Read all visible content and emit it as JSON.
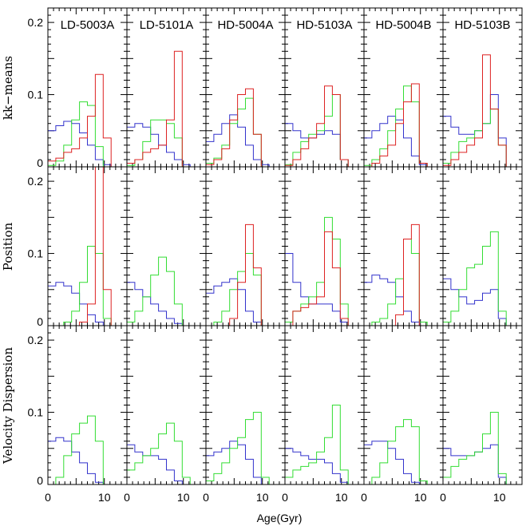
{
  "chart_data": {
    "type": "histogram-grid",
    "xlabel": "Age(Gyr)",
    "xlim": [
      0,
      14
    ],
    "ylim": [
      0,
      0.22
    ],
    "x_ticks": [
      0,
      10
    ],
    "y_ticks": [
      0,
      0.1,
      0.2
    ],
    "y_tick_labels": [
      "0",
      "0.1",
      "0.2"
    ],
    "x_tick_labels": [
      "0",
      "10"
    ],
    "columns": [
      "LD-5003A",
      "LD-5101A",
      "HD-5004A",
      "HD-5103A",
      "HD-5004B",
      "HD-5103B"
    ],
    "rows": [
      "kk−means",
      "Position",
      "Velocity Dispersion"
    ],
    "colors": {
      "blue": "#3333cc",
      "green": "#33dd33",
      "red": "#dd2222"
    },
    "bin_edges": [
      0,
      1.4,
      2.8,
      4.2,
      5.6,
      7.0,
      8.4,
      9.8,
      11.2,
      12.6,
      14
    ],
    "panels": [
      {
        "row": 0,
        "col": 0,
        "series": [
          {
            "color": "blue",
            "values": [
              0.05,
              0.057,
              0.063,
              0.06,
              0.047,
              0.03,
              0.01,
              0.003,
              0.0,
              0.0
            ]
          },
          {
            "color": "green",
            "values": [
              0.002,
              0.008,
              0.03,
              0.065,
              0.09,
              0.085,
              0.028,
              0.0,
              0.0,
              0.0
            ]
          },
          {
            "color": "red",
            "values": [
              0.008,
              0.012,
              0.02,
              0.025,
              0.04,
              0.07,
              0.128,
              0.04,
              0.0,
              0.0
            ]
          }
        ]
      },
      {
        "row": 0,
        "col": 1,
        "series": [
          {
            "color": "blue",
            "values": [
              0.055,
              0.06,
              0.055,
              0.045,
              0.03,
              0.02,
              0.01,
              0.003,
              0.0,
              0.0
            ]
          },
          {
            "color": "green",
            "values": [
              0.002,
              0.01,
              0.035,
              0.065,
              0.065,
              0.06,
              0.04,
              0.0,
              0.0,
              0.0
            ]
          },
          {
            "color": "red",
            "values": [
              0.005,
              0.01,
              0.02,
              0.025,
              0.03,
              0.065,
              0.16,
              0.0,
              0.0,
              0.0
            ]
          }
        ]
      },
      {
        "row": 0,
        "col": 2,
        "series": [
          {
            "color": "blue",
            "values": [
              0.035,
              0.045,
              0.06,
              0.072,
              0.055,
              0.03,
              0.01,
              0.003,
              0.0,
              0.0
            ]
          },
          {
            "color": "green",
            "values": [
              0.005,
              0.012,
              0.03,
              0.06,
              0.08,
              0.095,
              0.045,
              0.0,
              0.0,
              0.0
            ]
          },
          {
            "color": "red",
            "values": [
              0.003,
              0.01,
              0.025,
              0.065,
              0.1,
              0.108,
              0.045,
              0.0,
              0.0,
              0.0
            ]
          }
        ]
      },
      {
        "row": 0,
        "col": 3,
        "series": [
          {
            "color": "blue",
            "values": [
              0.06,
              0.05,
              0.04,
              0.04,
              0.045,
              0.05,
              0.045,
              0.01,
              0.0,
              0.0
            ]
          },
          {
            "color": "green",
            "values": [
              0.003,
              0.02,
              0.035,
              0.045,
              0.05,
              0.07,
              0.1,
              0.01,
              0.0,
              0.0
            ]
          },
          {
            "color": "red",
            "values": [
              0.002,
              0.01,
              0.025,
              0.04,
              0.06,
              0.112,
              0.1,
              0.01,
              0.0,
              0.0
            ]
          }
        ]
      },
      {
        "row": 0,
        "col": 4,
        "series": [
          {
            "color": "blue",
            "values": [
              0.04,
              0.05,
              0.06,
              0.07,
              0.065,
              0.04,
              0.015,
              0.003,
              0.0,
              0.0
            ]
          },
          {
            "color": "green",
            "values": [
              0.002,
              0.01,
              0.025,
              0.05,
              0.08,
              0.112,
              0.09,
              0.005,
              0.0,
              0.0
            ]
          },
          {
            "color": "red",
            "values": [
              0.0,
              0.005,
              0.015,
              0.03,
              0.06,
              0.09,
              0.115,
              0.005,
              0.0,
              0.0
            ]
          }
        ]
      },
      {
        "row": 0,
        "col": 5,
        "series": [
          {
            "color": "blue",
            "values": [
              0.07,
              0.055,
              0.045,
              0.045,
              0.05,
              0.06,
              0.1,
              0.04,
              0.0,
              0.0
            ]
          },
          {
            "color": "green",
            "values": [
              0.005,
              0.02,
              0.035,
              0.04,
              0.05,
              0.06,
              0.08,
              0.03,
              0.0,
              0.0
            ]
          },
          {
            "color": "red",
            "values": [
              0.002,
              0.01,
              0.02,
              0.03,
              0.04,
              0.155,
              0.08,
              0.03,
              0.0,
              0.0
            ]
          }
        ]
      },
      {
        "row": 1,
        "col": 0,
        "series": [
          {
            "color": "blue",
            "values": [
              0.055,
              0.06,
              0.055,
              0.045,
              0.03,
              0.015,
              0.005,
              0.0,
              0.0,
              0.0
            ]
          },
          {
            "color": "green",
            "values": [
              0.0,
              0.0,
              0.005,
              0.02,
              0.06,
              0.11,
              0.1,
              0.01,
              0.0,
              0.0
            ]
          },
          {
            "color": "red",
            "values": [
              0.0,
              0.0,
              0.0,
              0.0,
              0.005,
              0.03,
              0.22,
              0.05,
              0.0,
              0.0
            ]
          }
        ]
      },
      {
        "row": 1,
        "col": 1,
        "series": [
          {
            "color": "blue",
            "values": [
              0.06,
              0.05,
              0.04,
              0.03,
              0.02,
              0.01,
              0.003,
              0.0,
              0.0,
              0.0
            ]
          },
          {
            "color": "green",
            "values": [
              0.005,
              0.02,
              0.04,
              0.07,
              0.095,
              0.075,
              0.03,
              0.0,
              0.0,
              0.0
            ]
          }
        ]
      },
      {
        "row": 1,
        "col": 2,
        "series": [
          {
            "color": "blue",
            "values": [
              0.045,
              0.055,
              0.06,
              0.065,
              0.05,
              0.02,
              0.005,
              0.0,
              0.0,
              0.0
            ]
          },
          {
            "color": "green",
            "values": [
              0.0,
              0.005,
              0.02,
              0.05,
              0.075,
              0.1,
              0.07,
              0.0,
              0.0,
              0.0
            ]
          },
          {
            "color": "red",
            "values": [
              0.0,
              0.0,
              0.0,
              0.01,
              0.06,
              0.14,
              0.08,
              0.0,
              0.0,
              0.0
            ]
          }
        ]
      },
      {
        "row": 1,
        "col": 3,
        "series": [
          {
            "color": "blue",
            "values": [
              0.1,
              0.06,
              0.04,
              0.03,
              0.03,
              0.03,
              0.02,
              0.005,
              0.0,
              0.0
            ]
          },
          {
            "color": "green",
            "values": [
              0.005,
              0.02,
              0.03,
              0.04,
              0.06,
              0.15,
              0.12,
              0.03,
              0.0,
              0.0
            ]
          },
          {
            "color": "red",
            "values": [
              0.0,
              0.02,
              0.025,
              0.03,
              0.04,
              0.13,
              0.08,
              0.01,
              0.0,
              0.0
            ]
          }
        ]
      },
      {
        "row": 1,
        "col": 4,
        "series": [
          {
            "color": "blue",
            "values": [
              0.06,
              0.07,
              0.065,
              0.06,
              0.04,
              0.02,
              0.005,
              0.0,
              0.0,
              0.0
            ]
          },
          {
            "color": "green",
            "values": [
              0.0,
              0.005,
              0.01,
              0.03,
              0.065,
              0.12,
              0.1,
              0.005,
              0.0,
              0.0
            ]
          },
          {
            "color": "red",
            "values": [
              0.0,
              0.0,
              0.0,
              0.0,
              0.015,
              0.12,
              0.14,
              0.0,
              0.0,
              0.0
            ]
          }
        ]
      },
      {
        "row": 1,
        "col": 5,
        "series": [
          {
            "color": "blue",
            "values": [
              0.065,
              0.05,
              0.04,
              0.03,
              0.035,
              0.045,
              0.05,
              0.01,
              0.0,
              0.0
            ]
          },
          {
            "color": "green",
            "values": [
              0.005,
              0.02,
              0.05,
              0.08,
              0.085,
              0.11,
              0.13,
              0.02,
              0.0,
              0.0
            ]
          }
        ]
      },
      {
        "row": 2,
        "col": 0,
        "series": [
          {
            "color": "blue",
            "values": [
              0.06,
              0.065,
              0.06,
              0.045,
              0.03,
              0.015,
              0.003,
              0.0,
              0.0,
              0.0
            ]
          },
          {
            "color": "green",
            "values": [
              0.0,
              0.01,
              0.04,
              0.07,
              0.085,
              0.095,
              0.06,
              0.0,
              0.0,
              0.0
            ]
          }
        ]
      },
      {
        "row": 2,
        "col": 1,
        "series": [
          {
            "color": "blue",
            "values": [
              0.055,
              0.045,
              0.04,
              0.04,
              0.035,
              0.02,
              0.005,
              0.0,
              0.0,
              0.0
            ]
          },
          {
            "color": "green",
            "values": [
              0.02,
              0.03,
              0.04,
              0.05,
              0.07,
              0.085,
              0.06,
              0.01,
              0.0,
              0.0
            ]
          }
        ]
      },
      {
        "row": 2,
        "col": 2,
        "series": [
          {
            "color": "blue",
            "values": [
              0.04,
              0.045,
              0.05,
              0.06,
              0.055,
              0.035,
              0.01,
              0.0,
              0.0,
              0.0
            ]
          },
          {
            "color": "green",
            "values": [
              0.005,
              0.015,
              0.03,
              0.05,
              0.065,
              0.09,
              0.1,
              0.01,
              0.0,
              0.0
            ]
          }
        ]
      },
      {
        "row": 2,
        "col": 3,
        "series": [
          {
            "color": "blue",
            "values": [
              0.05,
              0.045,
              0.04,
              0.035,
              0.035,
              0.03,
              0.015,
              0.003,
              0.0,
              0.0
            ]
          },
          {
            "color": "green",
            "values": [
              0.01,
              0.02,
              0.025,
              0.03,
              0.045,
              0.065,
              0.11,
              0.02,
              0.0,
              0.0
            ]
          }
        ]
      },
      {
        "row": 2,
        "col": 4,
        "series": [
          {
            "color": "blue",
            "values": [
              0.055,
              0.06,
              0.06,
              0.05,
              0.035,
              0.015,
              0.003,
              0.0,
              0.0,
              0.0
            ]
          },
          {
            "color": "green",
            "values": [
              0.0,
              0.01,
              0.03,
              0.06,
              0.08,
              0.09,
              0.08,
              0.005,
              0.0,
              0.0
            ]
          }
        ]
      },
      {
        "row": 2,
        "col": 5,
        "series": [
          {
            "color": "blue",
            "values": [
              0.05,
              0.04,
              0.04,
              0.04,
              0.045,
              0.05,
              0.055,
              0.01,
              0.0,
              0.0
            ]
          },
          {
            "color": "green",
            "values": [
              0.01,
              0.025,
              0.035,
              0.04,
              0.045,
              0.07,
              0.1,
              0.015,
              0.0,
              0.0
            ]
          }
        ]
      }
    ]
  }
}
